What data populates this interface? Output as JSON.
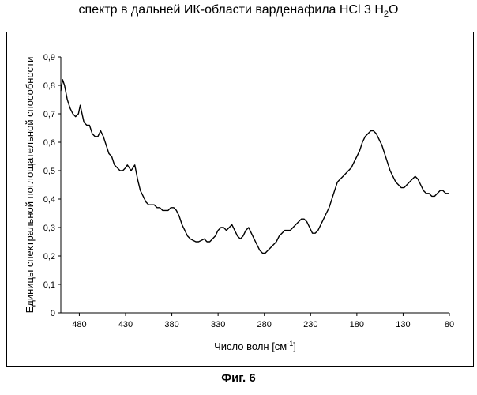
{
  "title_text": "спектр в дальней ИК-области варденафила HCl 3 H",
  "title_sub": "2",
  "title_tail": "O",
  "figure_caption": "Фиг. 6",
  "chart_data": {
    "type": "line",
    "title": "спектр в дальней ИК-области варденафила HCl 3 H2O",
    "xlabel": "Число волн [см-1]",
    "xlabel_main": "Число волн [см",
    "xlabel_sup": "-1",
    "xlabel_tail": "]",
    "ylabel": "Единицы спектральной поглощательной способности",
    "xlim": [
      500,
      80
    ],
    "ylim": [
      0,
      0.9
    ],
    "xticks": [
      480,
      430,
      380,
      330,
      280,
      230,
      180,
      130,
      80
    ],
    "yticks": [
      "0",
      "0,1",
      "0,2",
      "0,3",
      "0,4",
      "0,5",
      "0,6",
      "0,7",
      "0,8",
      "0,9"
    ],
    "grid": false,
    "legend": "none",
    "line_color": "#000000",
    "series": [
      {
        "x": [
          500,
          498,
          496,
          493,
          490,
          487,
          484,
          481,
          479,
          477,
          475,
          472,
          469,
          466,
          463,
          460,
          457,
          454,
          451,
          448,
          445,
          442,
          439,
          436,
          433,
          430,
          428,
          426,
          424,
          422,
          420,
          417,
          414,
          411,
          408,
          405,
          402,
          399,
          396,
          393,
          390,
          387,
          384,
          381,
          378,
          375,
          372,
          369,
          366,
          363,
          360,
          357,
          354,
          351,
          348,
          345,
          342,
          339,
          336,
          333,
          330,
          327,
          324,
          321,
          318,
          315,
          312,
          309,
          306,
          303,
          300,
          297,
          294,
          291,
          288,
          285,
          282,
          279,
          276,
          273,
          270,
          267,
          264,
          261,
          258,
          255,
          252,
          249,
          246,
          243,
          240,
          237,
          234,
          231,
          228,
          225,
          222,
          219,
          216,
          213,
          210,
          207,
          204,
          201,
          198,
          195,
          192,
          189,
          186,
          183,
          180,
          177,
          174,
          171,
          168,
          165,
          162,
          159,
          156,
          153,
          150,
          147,
          144,
          141,
          138,
          135,
          132,
          129,
          126,
          123,
          120,
          117,
          114,
          111,
          108,
          105,
          102,
          99,
          96,
          93,
          90,
          87,
          84,
          81,
          80
        ],
        "y": [
          0.78,
          0.82,
          0.8,
          0.75,
          0.72,
          0.7,
          0.69,
          0.7,
          0.73,
          0.7,
          0.67,
          0.66,
          0.66,
          0.63,
          0.62,
          0.62,
          0.64,
          0.62,
          0.59,
          0.56,
          0.55,
          0.52,
          0.51,
          0.5,
          0.5,
          0.51,
          0.52,
          0.51,
          0.5,
          0.51,
          0.52,
          0.47,
          0.43,
          0.41,
          0.39,
          0.38,
          0.38,
          0.38,
          0.37,
          0.37,
          0.36,
          0.36,
          0.36,
          0.37,
          0.37,
          0.36,
          0.34,
          0.31,
          0.29,
          0.27,
          0.26,
          0.255,
          0.25,
          0.25,
          0.255,
          0.26,
          0.25,
          0.25,
          0.26,
          0.27,
          0.29,
          0.3,
          0.3,
          0.29,
          0.3,
          0.31,
          0.29,
          0.27,
          0.26,
          0.27,
          0.29,
          0.3,
          0.28,
          0.26,
          0.24,
          0.22,
          0.21,
          0.21,
          0.22,
          0.23,
          0.24,
          0.25,
          0.27,
          0.28,
          0.29,
          0.29,
          0.29,
          0.3,
          0.31,
          0.32,
          0.33,
          0.33,
          0.32,
          0.3,
          0.28,
          0.28,
          0.29,
          0.31,
          0.33,
          0.35,
          0.37,
          0.4,
          0.43,
          0.46,
          0.47,
          0.48,
          0.49,
          0.5,
          0.51,
          0.53,
          0.55,
          0.57,
          0.6,
          0.62,
          0.63,
          0.64,
          0.64,
          0.63,
          0.61,
          0.59,
          0.56,
          0.53,
          0.5,
          0.48,
          0.46,
          0.45,
          0.44,
          0.44,
          0.45,
          0.46,
          0.47,
          0.48,
          0.47,
          0.45,
          0.43,
          0.42,
          0.42,
          0.41,
          0.41,
          0.42,
          0.43,
          0.43,
          0.42,
          0.42,
          0.42
        ]
      }
    ]
  }
}
